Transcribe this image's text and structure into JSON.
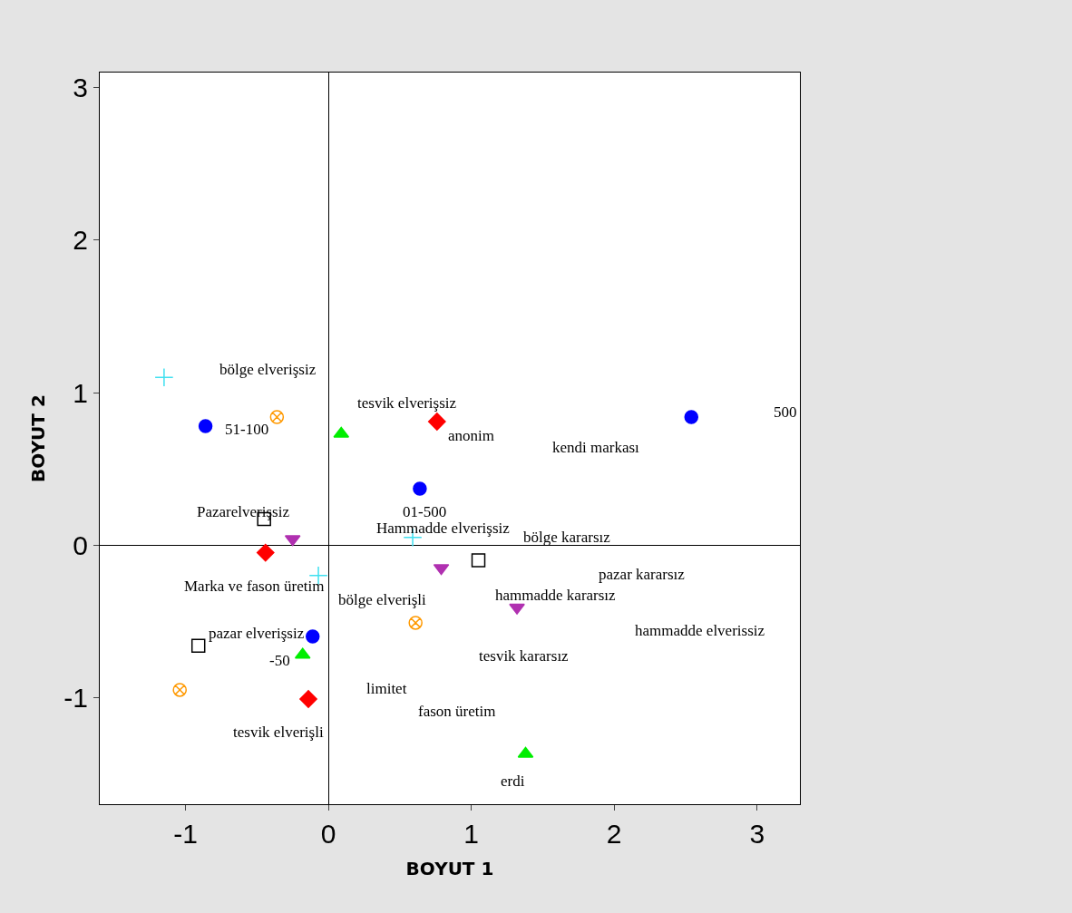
{
  "chart_data": {
    "type": "scatter",
    "xlabel": "BOYUT 1",
    "ylabel": "BOYUT 2",
    "xlim": [
      -1.6,
      3.3
    ],
    "ylim": [
      -1.7,
      3.1
    ],
    "xticks": [
      -1,
      0,
      1,
      2,
      3
    ],
    "yticks": [
      -1,
      0,
      1,
      2,
      3
    ],
    "series": [
      {
        "color": "#0000ff",
        "marker": "circle",
        "x": [
          -0.86,
          2.54,
          0.64,
          -0.11
        ],
        "values": [
          0.78,
          0.84,
          0.37,
          -0.6
        ]
      },
      {
        "color": "#ff0000",
        "marker": "diamond",
        "x": [
          0.76,
          -0.44,
          -0.14
        ],
        "values": [
          0.81,
          -0.05,
          -1.01
        ]
      },
      {
        "color": "#00ee00",
        "marker": "triangle",
        "x": [
          0.09,
          -0.18,
          1.38
        ],
        "values": [
          0.73,
          -0.72,
          -1.37
        ]
      },
      {
        "color": "#b030b0",
        "marker": "triangle-down",
        "x": [
          -0.25,
          0.79,
          1.32
        ],
        "values": [
          0.04,
          -0.15,
          -0.41
        ]
      },
      {
        "color": "#40e0f0",
        "marker": "cross",
        "x": [
          -1.15,
          -0.07,
          0.59
        ],
        "values": [
          1.1,
          -0.2,
          0.05
        ]
      },
      {
        "color": "#000000",
        "marker": "square-open",
        "x": [
          -0.45,
          1.05,
          -0.91
        ],
        "values": [
          0.17,
          -0.1,
          -0.66
        ]
      },
      {
        "color": "#ff9900",
        "x": [
          -0.36,
          0.61,
          -1.04
        ],
        "values": [
          0.84,
          -0.51,
          -0.95
        ]
      }
    ],
    "annotations": [
      "bölge elverişsiz",
      "51-100",
      "tesvik elverişsiz",
      "anonim",
      "kendi markası",
      "500",
      "01-500",
      "Pazarelverişsiz",
      "Hammadde elverişsiz",
      "bölge kararsız",
      "pazar kararsız",
      "Marka ve fason üretim",
      "hammadde kararsız",
      "bölge elverişli",
      "hammadde elverissiz",
      "pazar elverişsiz",
      "-50",
      "tesvik kararsız",
      "limitet",
      "fason üretim",
      "tesvik elverişli",
      "erdi"
    ]
  }
}
